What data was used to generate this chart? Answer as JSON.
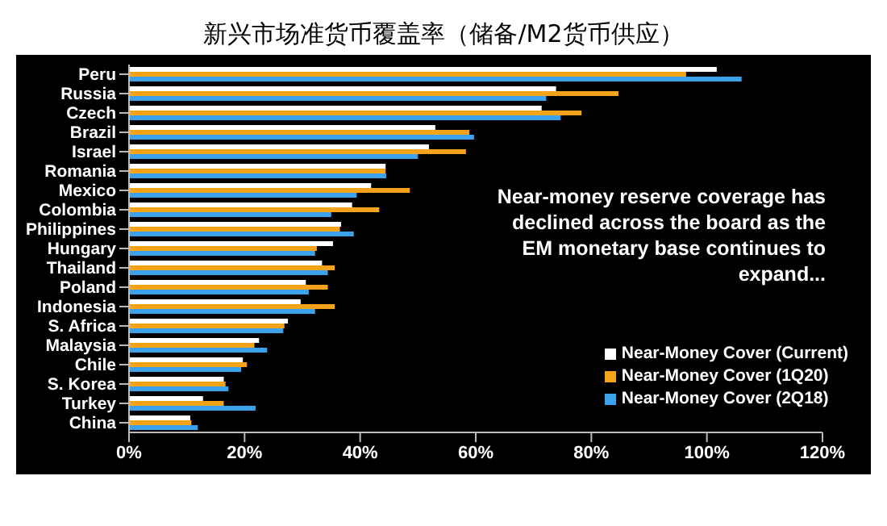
{
  "chart_data": {
    "type": "bar",
    "orientation": "horizontal",
    "title": "新兴市场准货币覆盖率（储备/M2货币供应）",
    "categories": [
      "Peru",
      "Russia",
      "Czech",
      "Brazil",
      "Israel",
      "Romania",
      "Mexico",
      "Colombia",
      "Philippines",
      "Hungary",
      "Thailand",
      "Poland",
      "Indonesia",
      "S. Africa",
      "Malaysia",
      "Chile",
      "S. Korea",
      "Turkey",
      "China"
    ],
    "series": [
      {
        "name": "Near-Money Cover (Current)",
        "color": "#ffffff",
        "values": [
          101.7,
          73.9,
          71.4,
          53,
          51.9,
          44.4,
          41.9,
          38.6,
          36.7,
          35.3,
          33.4,
          30.6,
          29.7,
          27.5,
          22.5,
          19.7,
          16.4,
          12.8,
          10.6
        ]
      },
      {
        "name": "Near-Money Cover (1Q20)",
        "color": "#f7a21b",
        "values": [
          96.4,
          84.7,
          78.3,
          58.9,
          58.3,
          44.4,
          48.6,
          43.3,
          36.5,
          32.5,
          35.6,
          34.4,
          35.6,
          26.9,
          21.7,
          20.4,
          16.7,
          16.4,
          10.8
        ]
      },
      {
        "name": "Near-Money Cover (2Q18)",
        "color": "#3ba3ec",
        "values": [
          106,
          72.2,
          74.7,
          59.7,
          50,
          44.5,
          39.4,
          35,
          38.9,
          32.2,
          34.4,
          31.1,
          32.2,
          26.7,
          23.9,
          19.4,
          17.2,
          21.9,
          11.9
        ]
      }
    ],
    "xlim": [
      0,
      120
    ],
    "xticks": [
      {
        "value": 0,
        "label": "0%"
      },
      {
        "value": 20,
        "label": "20%"
      },
      {
        "value": 40,
        "label": "40%"
      },
      {
        "value": 60,
        "label": "60%"
      },
      {
        "value": 80,
        "label": "80%"
      },
      {
        "value": 100,
        "label": "100%"
      },
      {
        "value": 120,
        "label": "120%"
      }
    ],
    "annotations": [
      "Near-money reserve coverage has declined across the board as the EM monetary base continues to expand..."
    ],
    "legend": "bottom right",
    "grid": false
  }
}
